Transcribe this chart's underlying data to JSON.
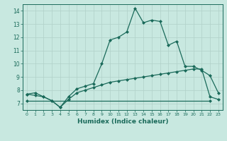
{
  "xlabel": "Humidex (Indice chaleur)",
  "background_color": "#c8e8e0",
  "grid_color": "#b0d0c8",
  "line_color": "#1a6a5a",
  "xlim": [
    -0.5,
    23.5
  ],
  "ylim": [
    6.5,
    14.5
  ],
  "xticks": [
    0,
    1,
    2,
    3,
    4,
    5,
    6,
    7,
    8,
    9,
    10,
    11,
    12,
    13,
    14,
    15,
    16,
    17,
    18,
    19,
    20,
    21,
    22,
    23
  ],
  "yticks": [
    7,
    8,
    9,
    10,
    11,
    12,
    13,
    14
  ],
  "series": [
    {
      "x": [
        0,
        1,
        2,
        3,
        4,
        5,
        6,
        7,
        8,
        9,
        10,
        11,
        12,
        13,
        14,
        15,
        16,
        17,
        18,
        19,
        20,
        21,
        22,
        23
      ],
      "y": [
        7.7,
        7.8,
        7.5,
        7.2,
        6.7,
        7.5,
        8.1,
        8.3,
        8.5,
        10.0,
        11.8,
        12.0,
        12.4,
        14.2,
        13.1,
        13.3,
        13.2,
        11.4,
        11.7,
        9.8,
        9.8,
        9.5,
        9.1,
        7.8
      ]
    },
    {
      "x": [
        0,
        1,
        2,
        3,
        4,
        5,
        6,
        7,
        8,
        9,
        10,
        11,
        12,
        13,
        14,
        15,
        16,
        17,
        18,
        19,
        20,
        21,
        22,
        23
      ],
      "y": [
        7.7,
        7.6,
        7.5,
        7.2,
        6.7,
        7.3,
        7.8,
        8.0,
        8.2,
        8.4,
        8.6,
        8.7,
        8.8,
        8.9,
        9.0,
        9.1,
        9.2,
        9.3,
        9.4,
        9.5,
        9.6,
        9.6,
        7.5,
        7.3
      ]
    },
    {
      "x": [
        0,
        22
      ],
      "y": [
        7.2,
        7.2
      ]
    }
  ]
}
